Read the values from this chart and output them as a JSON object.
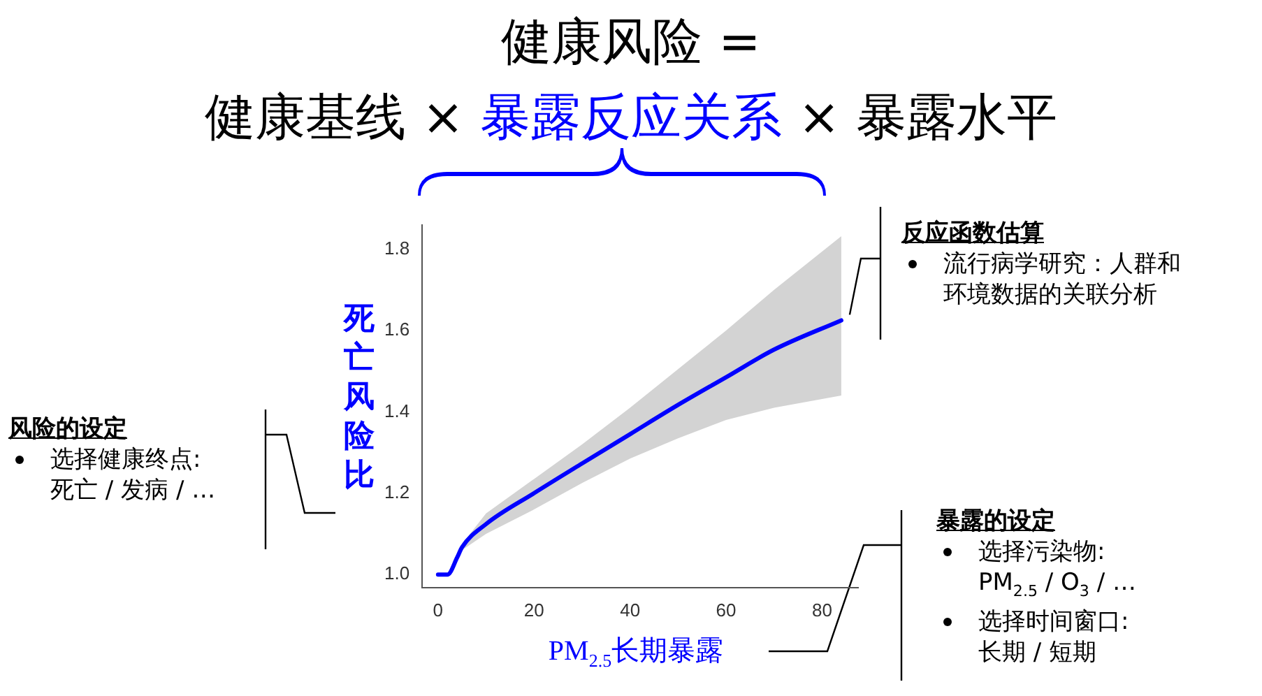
{
  "chart_data": {
    "type": "line",
    "title": "健康风险 =",
    "subtitle": "健康基线 × 暴露反应关系 × 暴露水平",
    "xlabel": "PM$_{2.5}$长期暴露",
    "ylabel": "死亡风险比",
    "x": [
      0,
      2,
      4,
      5,
      10,
      20,
      30,
      40,
      50,
      60,
      70,
      84
    ],
    "series": [
      {
        "color": "#0000ff",
        "values": [
          1.0,
          1.0,
          1.042,
          1.067,
          1.124,
          1.2,
          1.273,
          1.345,
          1.417,
          1.485,
          1.553,
          1.625
        ],
        "lower": [
          1.0,
          1.0,
          1.035,
          1.06,
          1.1,
          1.16,
          1.225,
          1.285,
          1.335,
          1.38,
          1.41,
          1.44
        ],
        "upper": [
          1.0,
          1.0,
          1.05,
          1.075,
          1.15,
          1.235,
          1.32,
          1.41,
          1.505,
          1.6,
          1.7,
          1.832
        ]
      }
    ],
    "xlim": [
      -3.3,
      87.5
    ],
    "ylim": [
      0.968,
      1.86
    ],
    "xticks": [
      0,
      20,
      40,
      60,
      80
    ],
    "yticks": [
      {
        "value": 1.0,
        "label": "1.0"
      },
      {
        "value": 1.2,
        "label": "1.2"
      },
      {
        "value": 1.4,
        "label": "1.4"
      },
      {
        "value": 1.6,
        "label": "1.6"
      },
      {
        "value": 1.8,
        "label": "1.8"
      }
    ],
    "grid": false,
    "legend": false,
    "marker": "none",
    "line_style": "solid",
    "annotations": [
      {
        "text": "反应函数估算",
        "x": 84,
        "y": 1.625
      },
      "流行病学研究：人群和环境数据的关联分析",
      "风险的设定",
      "选择健康终点:\n死亡 / 发病 / …",
      "暴露的设定",
      "选择污染物:\nPM$_{2.5}$ / O$_{3}$ / …",
      "选择时间窗口:\n长期 / 短期"
    ]
  }
}
